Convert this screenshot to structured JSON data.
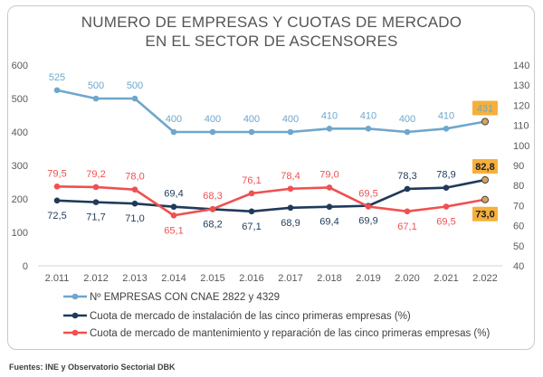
{
  "title_lines": [
    "NUMERO DE EMPRESAS Y CUOTAS DE MERCADO",
    "EN EL SECTOR DE ASCENSORES"
  ],
  "source": "Fuentes: INE y Observatorio Sectorial DBK",
  "chart_data": {
    "type": "line",
    "categories": [
      "2.011",
      "2.012",
      "2.013",
      "2.014",
      "2.015",
      "2.016",
      "2.017",
      "2.018",
      "2.019",
      "2.020",
      "2.021",
      "2.022"
    ],
    "left_axis": {
      "min": 0,
      "max": 600,
      "ticks": [
        "0",
        "100",
        "200",
        "300",
        "400",
        "500",
        "600"
      ]
    },
    "right_axis": {
      "min": 40,
      "max": 140,
      "ticks": [
        "40",
        "50",
        "60",
        "70",
        "80",
        "90",
        "100",
        "110",
        "120",
        "130",
        "140"
      ]
    },
    "series": [
      {
        "name": "Nº EMPRESAS CON CNAE 2822 y 4329",
        "axis": "left",
        "color": "#6fa7cc",
        "values": [
          525,
          500,
          500,
          400,
          400,
          400,
          400,
          410,
          410,
          400,
          410,
          431
        ],
        "labels": [
          "525",
          "500",
          "500",
          "400",
          "400",
          "400",
          "400",
          "410",
          "410",
          "400",
          "410",
          "431"
        ],
        "label_pos": "above",
        "highlight_last": true
      },
      {
        "name": "Cuota de mercado de instalación de las cinco primeras empresas (%)",
        "axis": "right",
        "color": "#1f3a5a",
        "values": [
          72.5,
          71.7,
          71.0,
          69.4,
          68.2,
          67.1,
          68.9,
          69.4,
          69.9,
          78.3,
          78.9,
          82.8
        ],
        "labels": [
          "72,5",
          "71,7",
          "71,0",
          "69,4",
          "68,2",
          "67,1",
          "68,9",
          "69,4",
          "69,9",
          "78,3",
          "78,9",
          "82,8"
        ],
        "label_pos": [
          "below",
          "below",
          "below",
          "above",
          "below",
          "below",
          "below",
          "below",
          "below",
          "above",
          "above",
          "above"
        ],
        "highlight_last": true
      },
      {
        "name": "Cuota de mercado de mantenimiento y reparación de las cinco primeras empresas (%)",
        "axis": "right",
        "color": "#f05050",
        "values": [
          79.5,
          79.2,
          78.0,
          65.1,
          68.3,
          76.1,
          78.4,
          79.0,
          69.5,
          67.1,
          69.5,
          73.0
        ],
        "labels": [
          "79,5",
          "79,2",
          "78,0",
          "65,1",
          "68,3",
          "76,1",
          "78,4",
          "79,0",
          "69,5",
          "67,1",
          "69,5",
          "73,0"
        ],
        "label_pos": [
          "above",
          "above",
          "above",
          "below",
          "above",
          "above",
          "above",
          "above",
          "above",
          "below",
          "below",
          "below"
        ],
        "highlight_last": true
      }
    ],
    "highlight_color": "#f5b03c",
    "grid": false,
    "legend_position": "bottom"
  }
}
